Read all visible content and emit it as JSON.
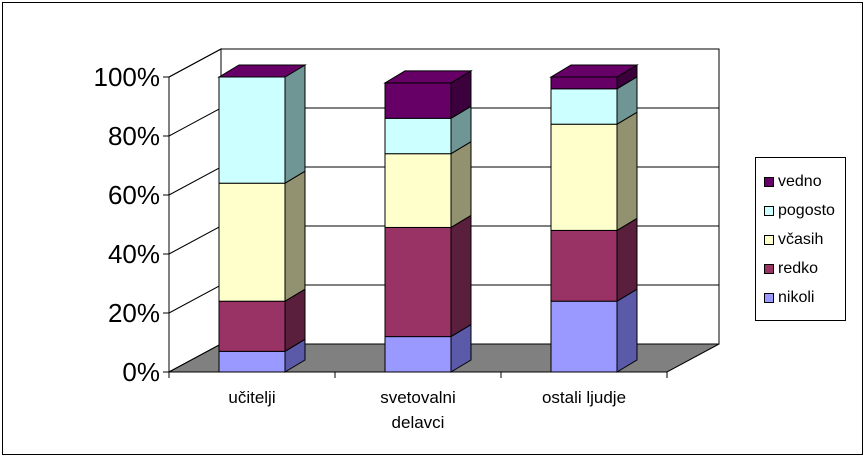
{
  "chart_data": {
    "type": "bar",
    "stacked": true,
    "percent": true,
    "three_d": true,
    "categories": [
      "učitelji",
      "svetovalni delavci",
      "ostali ljudje"
    ],
    "category_lines": [
      [
        "učitelji"
      ],
      [
        "svetovalni",
        "delavci"
      ],
      [
        "ostali ljudje"
      ]
    ],
    "y_ticks": [
      "0%",
      "20%",
      "40%",
      "60%",
      "80%",
      "100%"
    ],
    "ylim": [
      0,
      100
    ],
    "grid": true,
    "legend_position": "right",
    "series": [
      {
        "name": "nikoli",
        "values": [
          7,
          12,
          24
        ],
        "color": "#9999ff",
        "dark": "#5a5aa8"
      },
      {
        "name": "redko",
        "values": [
          17,
          37,
          24
        ],
        "color": "#993366",
        "dark": "#5a1f3c"
      },
      {
        "name": "včasih",
        "values": [
          40,
          25,
          36
        ],
        "color": "#ffffcc",
        "dark": "#929270"
      },
      {
        "name": "pogosto",
        "values": [
          36,
          12,
          12
        ],
        "color": "#ccffff",
        "dark": "#6f9595"
      },
      {
        "name": "vedno",
        "values": [
          0,
          12,
          4
        ],
        "color": "#660066",
        "dark": "#3c003c"
      }
    ]
  }
}
